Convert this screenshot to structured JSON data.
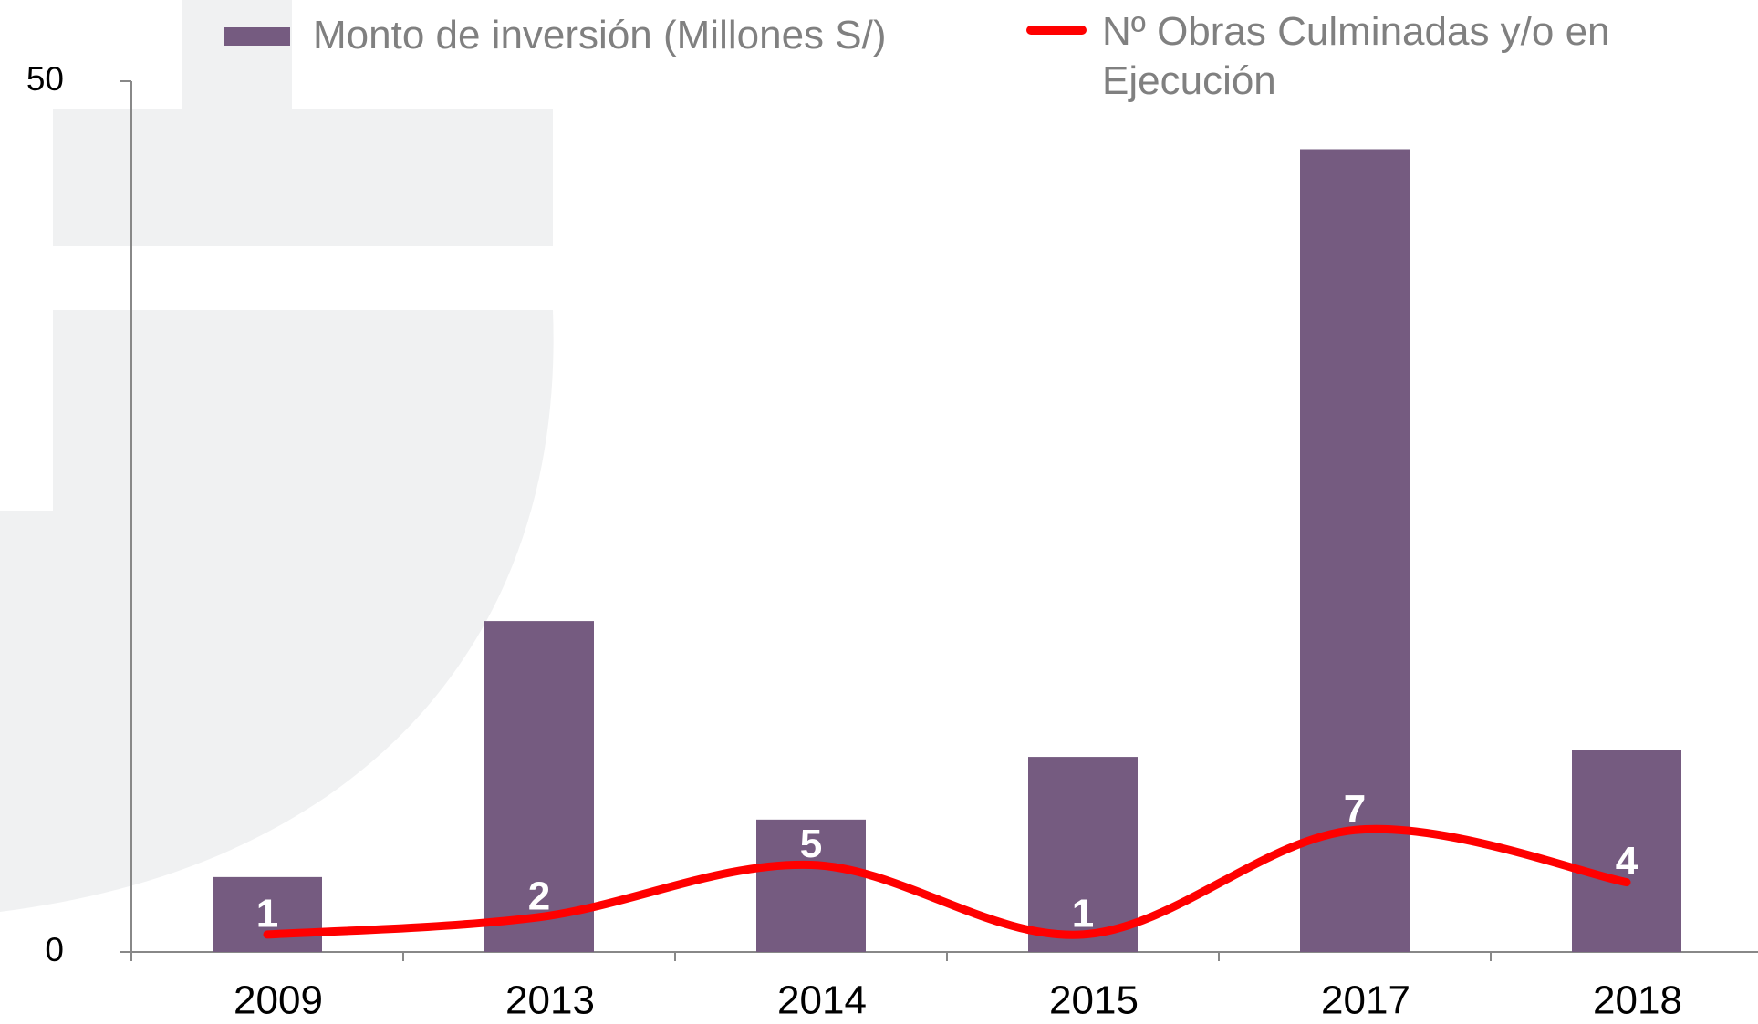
{
  "chart_data": {
    "type": "bar",
    "categories": [
      "2009",
      "2013",
      "2014",
      "2015",
      "2017",
      "2018"
    ],
    "series": [
      {
        "name": "Monto de inversión (Millones S/)",
        "type": "bar",
        "color": "#755b80",
        "values": [
          4.3,
          19.0,
          7.6,
          11.2,
          46.1,
          11.6
        ]
      },
      {
        "name": "Nº Obras Culminadas y/o en Ejecución",
        "type": "line",
        "color": "#ff0000",
        "values": [
          1,
          2,
          5,
          1,
          7,
          4
        ],
        "smooth": true
      }
    ],
    "ylim": [
      0,
      50
    ],
    "yticks": [
      0,
      50
    ]
  }
}
